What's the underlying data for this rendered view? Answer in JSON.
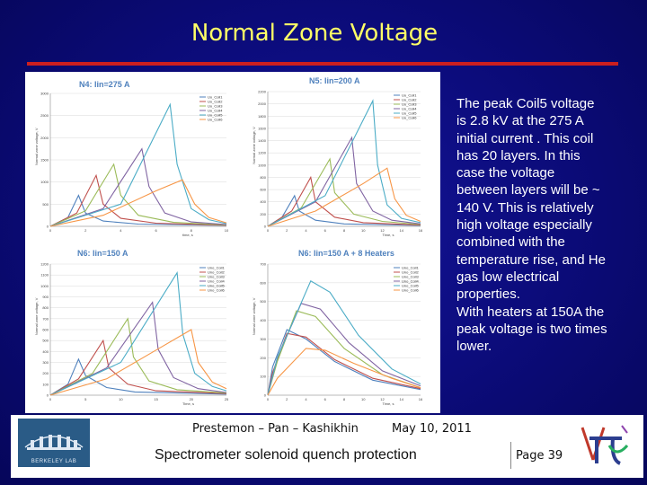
{
  "slide": {
    "title": "Normal Zone Voltage",
    "body": "The peak Coil5 voltage is 2.8 kV at the 275 A initial current . This coil has 20 layers. In this case the voltage between layers will be ~ 140 V. This is relatively high voltage especially combined with the temperature rise, and He gas low electrical properties.\nWith heaters at 150A the peak voltage is two times lower."
  },
  "footer": {
    "names": "Prestemon – Pan – Kashikhin",
    "date": "May 10, 2011",
    "subtitle": "Spectrometer solenoid quench protection",
    "page": "Page 39",
    "logo_text": "BERKELEY LAB"
  },
  "colors": {
    "background": "#0b0b78",
    "title": "#ffff66",
    "rule": "#cc1f1f",
    "series": [
      "#4f81bd",
      "#c0504d",
      "#9bbb59",
      "#8064a2",
      "#4bacc6",
      "#f79646"
    ]
  },
  "chart_data": [
    {
      "type": "line",
      "title": "N4: Iin=275 A",
      "xlabel": "time, s",
      "ylabel": "Normal zone voltage, V",
      "xlim": [
        0,
        10
      ],
      "ylim": [
        0,
        3000
      ],
      "xticks": [
        "0",
        "2",
        "4",
        "6",
        "8",
        "10"
      ],
      "yticks": [
        "0",
        "500",
        "1000",
        "1500",
        "2000",
        "2500",
        "3000"
      ],
      "legend": [
        "Uo_Coil1",
        "Uo_Coil2",
        "Uo_Coil3",
        "Uo_Coil4",
        "Uo_Coil5",
        "Uo_Coil6"
      ],
      "series": [
        {
          "name": "Uo_Coil1",
          "values": [
            [
              0,
              0
            ],
            [
              1,
              200
            ],
            [
              1.6,
              700
            ],
            [
              2,
              300
            ],
            [
              3,
              120
            ],
            [
              5,
              50
            ],
            [
              10,
              20
            ]
          ]
        },
        {
          "name": "Uo_Coil2",
          "values": [
            [
              0,
              0
            ],
            [
              1.5,
              300
            ],
            [
              2.6,
              1150
            ],
            [
              3,
              500
            ],
            [
              4,
              180
            ],
            [
              6,
              70
            ],
            [
              10,
              25
            ]
          ]
        },
        {
          "name": "Uo_Coil3",
          "values": [
            [
              0,
              0
            ],
            [
              2,
              350
            ],
            [
              3.6,
              1400
            ],
            [
              4,
              700
            ],
            [
              5,
              250
            ],
            [
              7,
              90
            ],
            [
              10,
              30
            ]
          ]
        },
        {
          "name": "Uo_Coil4",
          "values": [
            [
              0,
              0
            ],
            [
              3,
              400
            ],
            [
              5.2,
              1750
            ],
            [
              5.6,
              900
            ],
            [
              6.5,
              300
            ],
            [
              8,
              100
            ],
            [
              10,
              40
            ]
          ]
        },
        {
          "name": "Uo_Coil5",
          "values": [
            [
              0,
              0
            ],
            [
              4,
              500
            ],
            [
              6.8,
              2750
            ],
            [
              7.2,
              1400
            ],
            [
              8,
              400
            ],
            [
              9,
              150
            ],
            [
              10,
              60
            ]
          ]
        },
        {
          "name": "Uo_Coil6",
          "values": [
            [
              0,
              0
            ],
            [
              3,
              250
            ],
            [
              6,
              800
            ],
            [
              7.5,
              1050
            ],
            [
              8.2,
              500
            ],
            [
              9,
              200
            ],
            [
              10,
              80
            ]
          ]
        }
      ]
    },
    {
      "type": "line",
      "title": "N5: Iin=200 A",
      "xlabel": "Time, s",
      "ylabel": "Normal zone voltage, V",
      "xlim": [
        0,
        16
      ],
      "ylim": [
        0,
        2200
      ],
      "xticks": [
        "0",
        "2",
        "4",
        "6",
        "8",
        "10",
        "12",
        "14",
        "16"
      ],
      "yticks": [
        "0",
        "200",
        "400",
        "600",
        "800",
        "1000",
        "1200",
        "1400",
        "1600",
        "1800",
        "2000",
        "2200"
      ],
      "legend": [
        "Uo_Coil1",
        "Uo_Coil2",
        "Uo_Coil3",
        "Uo_Coil4",
        "Uo_Coil5",
        "Uo_Coil6"
      ],
      "series": [
        {
          "name": "Uo_Coil1",
          "values": [
            [
              0,
              0
            ],
            [
              1.5,
              150
            ],
            [
              2.8,
              500
            ],
            [
              3.3,
              250
            ],
            [
              5,
              100
            ],
            [
              8,
              40
            ],
            [
              16,
              15
            ]
          ]
        },
        {
          "name": "Uo_Coil2",
          "values": [
            [
              0,
              0
            ],
            [
              2.5,
              250
            ],
            [
              4.5,
              800
            ],
            [
              5,
              400
            ],
            [
              7,
              150
            ],
            [
              10,
              60
            ],
            [
              16,
              20
            ]
          ]
        },
        {
          "name": "Uo_Coil3",
          "values": [
            [
              0,
              0
            ],
            [
              3.5,
              300
            ],
            [
              6.5,
              1100
            ],
            [
              7,
              550
            ],
            [
              9,
              200
            ],
            [
              12,
              80
            ],
            [
              16,
              30
            ]
          ]
        },
        {
          "name": "Uo_Coil4",
          "values": [
            [
              0,
              0
            ],
            [
              5,
              400
            ],
            [
              8.8,
              1450
            ],
            [
              9.3,
              700
            ],
            [
              11,
              250
            ],
            [
              13,
              100
            ],
            [
              16,
              40
            ]
          ]
        },
        {
          "name": "Uo_Coil5",
          "values": [
            [
              0,
              0
            ],
            [
              6,
              500
            ],
            [
              11,
              2050
            ],
            [
              11.5,
              1000
            ],
            [
              12.5,
              350
            ],
            [
              14,
              130
            ],
            [
              16,
              60
            ]
          ]
        },
        {
          "name": "Uo_Coil6",
          "values": [
            [
              0,
              0
            ],
            [
              5,
              250
            ],
            [
              10,
              700
            ],
            [
              12.5,
              950
            ],
            [
              13.3,
              450
            ],
            [
              14.5,
              180
            ],
            [
              16,
              80
            ]
          ]
        }
      ]
    },
    {
      "type": "line",
      "title": "N6: Iin=150 A",
      "xlabel": "Time, s",
      "ylabel": "Normal zone voltage, V",
      "xlim": [
        0,
        25
      ],
      "ylim": [
        0,
        1200
      ],
      "xticks": [
        "0",
        "5",
        "10",
        "15",
        "20",
        "25"
      ],
      "yticks": [
        "0",
        "100",
        "200",
        "300",
        "400",
        "500",
        "600",
        "700",
        "800",
        "900",
        "1000",
        "1100",
        "1200"
      ],
      "legend": [
        "Uno_Coil1",
        "Uno_Coil2",
        "Uno_Coil3",
        "Uno_Coil4",
        "Uno_Coil5",
        "Uno_Coil6"
      ],
      "series": [
        {
          "name": "Uno_Coil1",
          "values": [
            [
              0,
              0
            ],
            [
              2.5,
              100
            ],
            [
              4,
              330
            ],
            [
              5,
              180
            ],
            [
              8,
              70
            ],
            [
              12,
              30
            ],
            [
              25,
              10
            ]
          ]
        },
        {
          "name": "Uno_Coil2",
          "values": [
            [
              0,
              0
            ],
            [
              4,
              150
            ],
            [
              7.5,
              500
            ],
            [
              8.3,
              250
            ],
            [
              11,
              100
            ],
            [
              15,
              40
            ],
            [
              25,
              15
            ]
          ]
        },
        {
          "name": "Uno_Coil3",
          "values": [
            [
              0,
              0
            ],
            [
              6,
              200
            ],
            [
              11,
              700
            ],
            [
              11.8,
              350
            ],
            [
              14,
              130
            ],
            [
              18,
              50
            ],
            [
              25,
              20
            ]
          ]
        },
        {
          "name": "Uno_Coil4",
          "values": [
            [
              0,
              0
            ],
            [
              8,
              250
            ],
            [
              14.5,
              850
            ],
            [
              15.3,
              420
            ],
            [
              17.5,
              160
            ],
            [
              21,
              60
            ],
            [
              25,
              25
            ]
          ]
        },
        {
          "name": "Uno_Coil5",
          "values": [
            [
              0,
              0
            ],
            [
              10,
              300
            ],
            [
              18,
              1120
            ],
            [
              18.8,
              560
            ],
            [
              20.5,
              200
            ],
            [
              23,
              80
            ],
            [
              25,
              40
            ]
          ]
        },
        {
          "name": "Uno_Coil6",
          "values": [
            [
              0,
              0
            ],
            [
              8,
              150
            ],
            [
              16,
              450
            ],
            [
              20,
              600
            ],
            [
              21,
              300
            ],
            [
              23,
              120
            ],
            [
              25,
              60
            ]
          ]
        }
      ]
    },
    {
      "type": "line",
      "title": "N6: Iin=150 A + 8 Heaters",
      "xlabel": "Time, s",
      "ylabel": "Normal zone voltage, V",
      "xlim": [
        0,
        16
      ],
      "ylim": [
        0,
        700
      ],
      "xticks": [
        "0",
        "2",
        "4",
        "6",
        "8",
        "10",
        "12",
        "14",
        "16"
      ],
      "yticks": [
        "0",
        "100",
        "200",
        "300",
        "400",
        "500",
        "600",
        "700"
      ],
      "legend": [
        "Uno_Coil1",
        "Uno_Coil2",
        "Uno_Coil3",
        "Uno_Coil4",
        "Uno_Coil5",
        "Uno_Coil6"
      ],
      "series": [
        {
          "name": "Uno_Coil1",
          "values": [
            [
              0,
              0
            ],
            [
              0.5,
              150
            ],
            [
              2,
              350
            ],
            [
              4,
              300
            ],
            [
              7,
              180
            ],
            [
              11,
              80
            ],
            [
              16,
              30
            ]
          ]
        },
        {
          "name": "Uno_Coil2",
          "values": [
            [
              0,
              0
            ],
            [
              0.5,
              120
            ],
            [
              2,
              330
            ],
            [
              4,
              310
            ],
            [
              7,
              190
            ],
            [
              11,
              90
            ],
            [
              16,
              35
            ]
          ]
        },
        {
          "name": "Uno_Coil3",
          "values": [
            [
              0,
              0
            ],
            [
              1,
              180
            ],
            [
              3,
              450
            ],
            [
              5,
              420
            ],
            [
              8,
              250
            ],
            [
              12,
              110
            ],
            [
              16,
              40
            ]
          ]
        },
        {
          "name": "Uno_Coil4",
          "values": [
            [
              0,
              0
            ],
            [
              1,
              200
            ],
            [
              3.5,
              490
            ],
            [
              5.5,
              460
            ],
            [
              8.5,
              280
            ],
            [
              12,
              130
            ],
            [
              16,
              50
            ]
          ]
        },
        {
          "name": "Uno_Coil5",
          "values": [
            [
              0,
              0
            ],
            [
              1,
              200
            ],
            [
              4.5,
              610
            ],
            [
              6.5,
              550
            ],
            [
              9.5,
              320
            ],
            [
              13,
              140
            ],
            [
              16,
              60
            ]
          ]
        },
        {
          "name": "Uno_Coil6",
          "values": [
            [
              0,
              0
            ],
            [
              1,
              90
            ],
            [
              4,
              250
            ],
            [
              6,
              240
            ],
            [
              9,
              170
            ],
            [
              13,
              90
            ],
            [
              16,
              40
            ]
          ]
        }
      ]
    }
  ]
}
